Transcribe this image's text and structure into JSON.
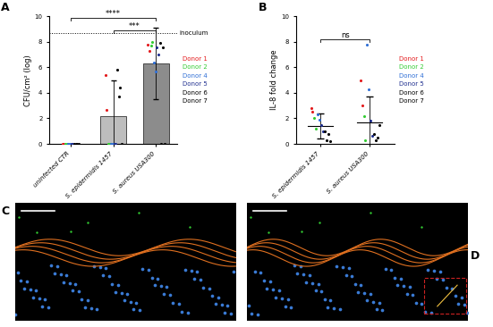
{
  "chart_data": [
    {
      "type": "bar",
      "title": "A",
      "y_label": "CFU/cm² (log)",
      "categories": [
        "uninfected CTR",
        "S. epidermidis 1457",
        "S. aureus USA300"
      ],
      "values": [
        0,
        2.2,
        6.3
      ],
      "errors": [
        0,
        2.8,
        2.8
      ],
      "colors": [
        "#d9d9d9",
        "#bdbdbd",
        "#8c8c8c"
      ],
      "ylim": [
        0,
        10
      ],
      "yticks": [
        0,
        2,
        4,
        6,
        8,
        10
      ],
      "reference_line": {
        "value": 8.7,
        "label": "inoculum"
      },
      "significance": [
        {
          "text": "****",
          "from": 0,
          "to": 2,
          "y": 9.9
        },
        {
          "text": "***",
          "from": 1,
          "to": 2,
          "y": 8.9
        }
      ],
      "legend": "center left",
      "series": [
        {
          "name": "Donor 1",
          "color": "#e31a1c",
          "values": [
            [
              0,
              0
            ],
            [
              5.4,
              2.7
            ],
            [
              7.8,
              7.3
            ]
          ]
        },
        {
          "name": "Donor 2",
          "color": "#33cc33",
          "values": [
            [
              0,
              0
            ],
            [
              0,
              0
            ],
            [
              7.7,
              8.0
            ]
          ]
        },
        {
          "name": "Donor 4",
          "color": "#2f6fd6",
          "values": [
            [
              0,
              0
            ],
            [
              0,
              0
            ],
            [
              6.4,
              5.7
            ]
          ]
        },
        {
          "name": "Donor 5",
          "color": "#1f2f8f",
          "values": [
            [
              0,
              0
            ],
            [
              0,
              0
            ],
            [
              7.6,
              7.0
            ]
          ]
        },
        {
          "name": "Donor 6",
          "color": "#000000",
          "values": [
            [
              0,
              0
            ],
            [
              5.8,
              3.7
            ],
            [
              7.9,
              0
            ]
          ]
        },
        {
          "name": "Donor 7",
          "color": "#000000",
          "values": [
            [
              0,
              0
            ],
            [
              4.4,
              0
            ],
            [
              7.6,
              0
            ]
          ]
        }
      ]
    },
    {
      "type": "scatter",
      "title": "B",
      "y_label": "IL-8 fold change",
      "categories": [
        "S. epidermidis 1457",
        "S. aureus USA300"
      ],
      "means": [
        1.4,
        1.7
      ],
      "errors": [
        1.0,
        2.0
      ],
      "ylim": [
        0,
        10
      ],
      "yticks": [
        0,
        2,
        4,
        6,
        8,
        10
      ],
      "significance": [
        {
          "text": "ns",
          "from": 0,
          "to": 1,
          "y": 8.2
        }
      ],
      "legend": "center left",
      "series": [
        {
          "name": "Donor 1",
          "color": "#e31a1c",
          "values": [
            [
              2.8,
              2.5
            ],
            [
              5.0,
              3.0
            ]
          ]
        },
        {
          "name": "Donor 2",
          "color": "#33cc33",
          "values": [
            [
              2.0,
              1.2
            ],
            [
              2.2,
              0.3
            ]
          ]
        },
        {
          "name": "Donor 4",
          "color": "#2f6fd6",
          "values": [
            [
              2.3,
              1.9
            ],
            [
              7.8,
              4.3
            ]
          ]
        },
        {
          "name": "Donor 5",
          "color": "#1f2f8f",
          "values": [
            [
              1.5,
              1.0
            ],
            [
              1.8,
              0.6
            ]
          ]
        },
        {
          "name": "Donor 6",
          "color": "#000000",
          "values": [
            [
              1.0,
              0.3
            ],
            [
              0.8,
              0.3
            ]
          ]
        },
        {
          "name": "Donor 7",
          "color": "#000000",
          "values": [
            [
              0.8,
              0.2
            ],
            [
              0.5,
              1.5
            ]
          ]
        }
      ]
    }
  ],
  "images": [
    {
      "title": "C"
    },
    {
      "title": "D"
    }
  ]
}
